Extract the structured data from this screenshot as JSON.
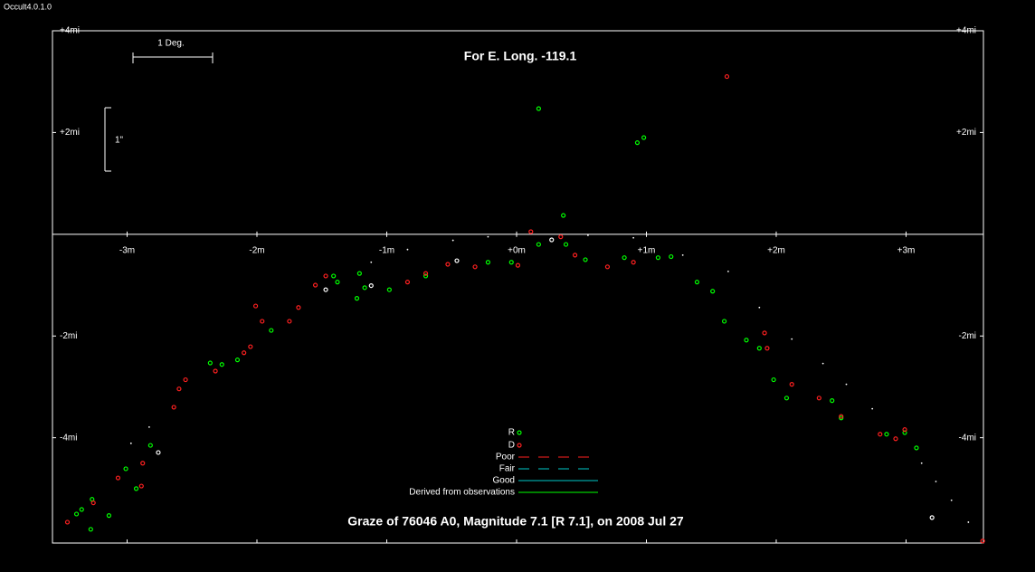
{
  "window_title": "Occult4.0.1.0",
  "chart_data": {
    "type": "scatter",
    "title": "For E. Long. -119.1",
    "caption": "Graze of  76046 A0,  Magnitude 7.1 [R 7.1],  on 2008 Jul 27",
    "scale_bars": {
      "horizontal": "1 Deg.",
      "vertical": "1\""
    },
    "xlim": [
      -3.575,
      3.596
    ],
    "ylim": [
      -6.07,
      4
    ],
    "xticks": [
      {
        "value": -3,
        "label": "-3m"
      },
      {
        "value": -2,
        "label": "-2m"
      },
      {
        "value": -1,
        "label": "-1m"
      },
      {
        "value": 0,
        "label": "+0m"
      },
      {
        "value": 1,
        "label": "+1m"
      },
      {
        "value": 2,
        "label": "+2m"
      },
      {
        "value": 3,
        "label": "+3m"
      }
    ],
    "yticks": [
      {
        "value": 4,
        "label": "+4mi"
      },
      {
        "value": 2,
        "label": "+2mi"
      },
      {
        "value": -2,
        "label": "-2mi"
      },
      {
        "value": -4,
        "label": "-4mi"
      }
    ],
    "series": [
      {
        "name": "R",
        "color": "#00ff00",
        "x": [
          0.17,
          0.98,
          0.93,
          0.36,
          -3.35,
          -3.28,
          -3.39,
          -3.27,
          -3.14,
          -3.01,
          -2.93,
          -2.82,
          -2.36,
          -2.27,
          -2.15,
          -1.89,
          -1.41,
          -1.38,
          -1.21,
          -1.23,
          -1.17,
          -0.98,
          -0.7,
          -0.22,
          -0.04,
          0.17,
          0.38,
          0.53,
          0.83,
          1.09,
          1.19,
          1.39,
          1.51,
          1.6,
          1.77,
          1.87,
          1.98,
          2.08,
          2.43,
          2.5,
          2.85,
          2.99,
          3.08
        ],
        "values": [
          2.47,
          1.9,
          1.8,
          0.37,
          -5.41,
          -5.8,
          -5.5,
          -5.21,
          -5.53,
          -4.61,
          -5.0,
          -4.15,
          -2.53,
          -2.56,
          -2.47,
          -1.89,
          -0.82,
          -0.94,
          -0.77,
          -1.26,
          -1.05,
          -1.09,
          -0.82,
          -0.55,
          -0.55,
          -0.2,
          -0.2,
          -0.5,
          -0.46,
          -0.46,
          -0.44,
          -0.94,
          -1.12,
          -1.71,
          -2.08,
          -2.24,
          -2.86,
          -3.22,
          -3.27,
          -3.61,
          -3.93,
          -3.9,
          -4.2
        ]
      },
      {
        "name": "D",
        "color": "#ff2020",
        "x": [
          1.62,
          0.11,
          -3.46,
          -3.26,
          -3.07,
          -2.89,
          -2.88,
          -2.64,
          -2.6,
          -2.55,
          -2.32,
          -2.1,
          -2.05,
          -2.01,
          -1.96,
          -1.75,
          -1.68,
          -1.55,
          -1.47,
          -0.84,
          -0.7,
          -0.53,
          -0.32,
          0.01,
          0.34,
          0.45,
          0.7,
          0.9,
          1.91,
          1.93,
          2.12,
          2.33,
          2.5,
          2.8,
          2.92,
          2.99,
          3.59
        ],
        "values": [
          3.1,
          0.05,
          -5.66,
          -5.28,
          -4.79,
          -4.95,
          -4.5,
          -3.4,
          -3.04,
          -2.86,
          -2.69,
          -2.33,
          -2.21,
          -1.41,
          -1.71,
          -1.71,
          -1.44,
          -1.0,
          -0.82,
          -0.94,
          -0.77,
          -0.59,
          -0.64,
          -0.61,
          -0.05,
          -0.41,
          -0.64,
          -0.55,
          -1.94,
          -2.24,
          -2.95,
          -3.22,
          -3.58,
          -3.93,
          -4.02,
          -3.84,
          -6.03
        ]
      },
      {
        "color": "#ffffff",
        "x": [
          3.2,
          -2.76,
          -0.46,
          -1.47,
          -1.12,
          0.27
        ],
        "values": [
          -5.57,
          -4.29,
          -0.52,
          -1.09,
          -1.01,
          -0.11
        ]
      },
      {
        "color": "#ffffff",
        "marker": "dot",
        "x": [
          3.48,
          3.35,
          3.23,
          3.12,
          2.74,
          2.54,
          2.36,
          2.12,
          1.87,
          1.63,
          1.28,
          0.9,
          0.55,
          -0.22,
          -0.49,
          -0.84,
          -1.12,
          -2.97,
          -2.83
        ],
        "values": [
          -5.66,
          -5.23,
          -4.86,
          -4.5,
          -3.43,
          -2.95,
          -2.54,
          -2.06,
          -1.44,
          -0.73,
          -0.41,
          -0.07,
          -0.02,
          -0.05,
          -0.12,
          -0.3,
          -0.55,
          -4.11,
          -3.79
        ]
      }
    ],
    "line_styles": [
      {
        "label": "Poor",
        "color": "#ff2020",
        "dash": "12 10"
      },
      {
        "label": "Fair",
        "color": "#00c8c8",
        "dash": "12 10"
      },
      {
        "label": "Good",
        "color": "#00c8c8"
      },
      {
        "label": "Derived from observations",
        "color": "#00ff00"
      }
    ]
  }
}
